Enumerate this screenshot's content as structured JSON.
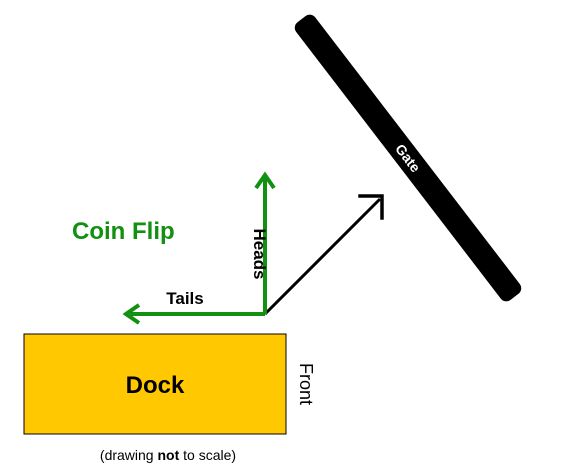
{
  "labels": {
    "coin_flip": "Coin Flip",
    "heads": "Heads",
    "tails": "Tails",
    "gate": "Gate",
    "dock": "Dock",
    "front": "Front"
  },
  "note": {
    "prefix": "(drawing ",
    "emphasis": "not",
    "suffix": " to scale)"
  },
  "colors": {
    "green": "#119011",
    "dock_fill": "#ffc800",
    "gate_fill": "#000000",
    "text": "#000000"
  }
}
